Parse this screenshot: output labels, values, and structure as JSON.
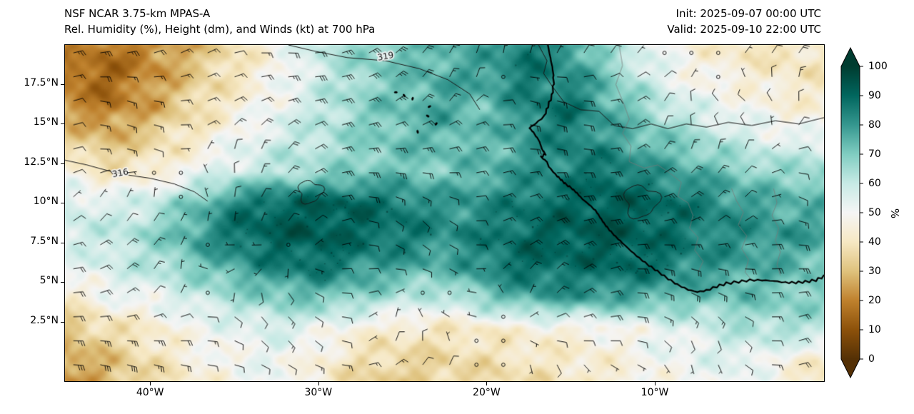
{
  "header": {
    "title_line1": "NSF NCAR 3.75-km MPAS-A",
    "title_line2": "Rel. Humidity (%), Height (dm), and Winds (kt) at 700 hPa",
    "init_label": "Init: 2025-09-07 00:00 UTC",
    "valid_label": "Valid: 2025-09-10 22:00 UTC"
  },
  "chart_data": {
    "type": "heatmap",
    "title": "Rel. Humidity (%), Height (dm), and Winds (kt) at 700 hPa",
    "variable": "relative humidity (%) at 700 hPa",
    "overlays": [
      "geopotential height contours (dm)",
      "wind barbs (kt)",
      "coastlines",
      "country borders"
    ],
    "geo": {
      "lon_min": -45.1,
      "lon_max": 0.1,
      "lat_min": -1.3,
      "lat_max": 20.0
    },
    "x_axis": {
      "tick_labels": [
        "40°W",
        "30°W",
        "20°W",
        "10°W"
      ],
      "tick_lons": [
        -40,
        -30,
        -20,
        -10
      ]
    },
    "y_axis": {
      "tick_labels": [
        "17.5°N",
        "15°N",
        "12.5°N",
        "10°N",
        "7.5°N",
        "5°N",
        "2.5°N"
      ],
      "tick_lats": [
        17.5,
        15,
        12.5,
        10,
        7.5,
        5,
        2.5
      ]
    },
    "colorbar": {
      "label": "%",
      "ticks": [
        0,
        10,
        20,
        30,
        40,
        50,
        60,
        70,
        80,
        90,
        100
      ],
      "colors_low_to_high": [
        "#543005",
        "#8c510a",
        "#bf812d",
        "#dfc27d",
        "#f6e8c3",
        "#f5f5f5",
        "#c7eae5",
        "#80cdc1",
        "#35978f",
        "#01665e",
        "#003c30"
      ]
    },
    "rh_grid": {
      "lons": [
        -45,
        -42.5,
        -40,
        -37.5,
        -35,
        -32.5,
        -30,
        -27.5,
        -25,
        -22.5,
        -20,
        -17.5,
        -15,
        -12.5,
        -10,
        -7.5,
        -5,
        -2.5,
        0
      ],
      "lats": [
        20,
        18,
        16,
        14,
        12,
        10,
        8,
        6,
        4,
        2,
        0,
        -2
      ],
      "values": [
        [
          22,
          18,
          20,
          28,
          38,
          48,
          60,
          68,
          72,
          74,
          76,
          88,
          80,
          62,
          52,
          45,
          40,
          38,
          42
        ],
        [
          16,
          14,
          22,
          32,
          40,
          48,
          58,
          66,
          72,
          76,
          80,
          86,
          82,
          70,
          55,
          48,
          45,
          42,
          40
        ],
        [
          24,
          18,
          26,
          36,
          44,
          52,
          60,
          68,
          73,
          78,
          72,
          84,
          88,
          76,
          65,
          55,
          50,
          46,
          44
        ],
        [
          34,
          28,
          35,
          42,
          50,
          58,
          62,
          68,
          72,
          75,
          72,
          80,
          85,
          78,
          72,
          66,
          58,
          54,
          52
        ],
        [
          46,
          40,
          42,
          50,
          58,
          62,
          65,
          70,
          72,
          70,
          75,
          80,
          85,
          88,
          80,
          76,
          70,
          66,
          68
        ],
        [
          58,
          54,
          60,
          70,
          84,
          90,
          92,
          90,
          85,
          80,
          82,
          86,
          90,
          92,
          90,
          86,
          80,
          76,
          74
        ],
        [
          58,
          60,
          66,
          78,
          88,
          92,
          93,
          90,
          87,
          82,
          85,
          90,
          92,
          93,
          90,
          85,
          82,
          80,
          78
        ],
        [
          52,
          57,
          62,
          70,
          78,
          85,
          88,
          82,
          78,
          75,
          84,
          90,
          88,
          90,
          88,
          82,
          78,
          75,
          72
        ],
        [
          42,
          50,
          52,
          58,
          65,
          70,
          72,
          68,
          62,
          60,
          70,
          78,
          80,
          78,
          75,
          72,
          72,
          70,
          68
        ],
        [
          30,
          38,
          42,
          50,
          52,
          56,
          52,
          45,
          42,
          40,
          42,
          45,
          45,
          48,
          52,
          55,
          62,
          64,
          62
        ],
        [
          25,
          30,
          38,
          45,
          50,
          52,
          45,
          38,
          35,
          36,
          38,
          40,
          42,
          45,
          50,
          52,
          55,
          48,
          42
        ],
        [
          20,
          26,
          34,
          42,
          48,
          50,
          42,
          34,
          31,
          33,
          35,
          37,
          39,
          41,
          47,
          50,
          52,
          44,
          38
        ]
      ]
    },
    "contours": [
      {
        "label": "319",
        "label_at": [
          -26.0,
          19.25
        ],
        "points": [
          [
            -31.8,
            20.0
          ],
          [
            -30.2,
            19.6
          ],
          [
            -28.3,
            19.2
          ],
          [
            -26.0,
            19.0
          ],
          [
            -24.0,
            18.5
          ],
          [
            -22.3,
            17.8
          ],
          [
            -21.0,
            16.9
          ],
          [
            -20.4,
            15.9
          ]
        ]
      },
      {
        "label": "316",
        "label_at": [
          -41.8,
          11.85
        ],
        "points": [
          [
            -45.1,
            12.7
          ],
          [
            -43.8,
            12.4
          ],
          [
            -42.6,
            12.05
          ],
          [
            -41.3,
            11.75
          ],
          [
            -40.0,
            11.55
          ],
          [
            -38.6,
            11.2
          ],
          [
            -37.4,
            10.7
          ],
          [
            -36.6,
            10.1
          ]
        ]
      },
      {
        "label": "",
        "points": [
          [
            -16.9,
            20.0
          ],
          [
            -16.4,
            19.0
          ],
          [
            -16.6,
            18.2
          ],
          [
            -16.1,
            17.4
          ],
          [
            -15.4,
            16.4
          ],
          [
            -14.4,
            15.9
          ],
          [
            -13.3,
            15.8
          ],
          [
            -12.4,
            14.9
          ],
          [
            -11.3,
            14.7
          ],
          [
            -10.2,
            15.0
          ],
          [
            -9.2,
            14.7
          ],
          [
            -8.1,
            15.0
          ],
          [
            -6.9,
            14.8
          ],
          [
            -5.6,
            15.1
          ],
          [
            -4.2,
            14.9
          ],
          [
            -2.8,
            15.2
          ],
          [
            -1.4,
            15.0
          ],
          [
            0.1,
            15.4
          ]
        ]
      },
      {
        "label": "",
        "closed": true,
        "center": [
          -30.5,
          10.7
        ],
        "r": 0.7
      },
      {
        "label": "",
        "closed": true,
        "center": [
          -10.8,
          10.1
        ],
        "r": 1.0
      }
    ],
    "borders": [
      [
        [
          -12.1,
          20.0
        ],
        [
          -11.9,
          18.7
        ],
        [
          -12.3,
          17.5
        ],
        [
          -11.8,
          16.2
        ],
        [
          -11.5,
          15.3
        ],
        [
          -11.9,
          14.4
        ],
        [
          -11.4,
          13.6
        ],
        [
          -11.5,
          12.6
        ]
      ],
      [
        [
          -11.5,
          12.6
        ],
        [
          -10.6,
          12.2
        ],
        [
          -9.8,
          12.4
        ],
        [
          -9.1,
          11.9
        ],
        [
          -8.4,
          11.3
        ],
        [
          -8.6,
          10.4
        ],
        [
          -8.0,
          10.0
        ],
        [
          -7.7,
          9.2
        ],
        [
          -7.9,
          8.4
        ],
        [
          -7.4,
          7.8
        ],
        [
          -7.6,
          7.0
        ],
        [
          -7.1,
          6.3
        ],
        [
          -7.4,
          5.6
        ]
      ],
      [
        [
          -5.4,
          10.9
        ],
        [
          -5.1,
          10.1
        ],
        [
          -4.7,
          9.4
        ],
        [
          -5.0,
          8.6
        ],
        [
          -4.5,
          7.9
        ],
        [
          -4.8,
          7.1
        ],
        [
          -4.4,
          6.4
        ],
        [
          -4.6,
          5.6
        ],
        [
          -4.2,
          5.1
        ]
      ],
      [
        [
          -2.9,
          10.9
        ],
        [
          -2.7,
          10.0
        ],
        [
          -3.0,
          9.2
        ],
        [
          -2.6,
          8.4
        ],
        [
          -2.8,
          7.6
        ],
        [
          -2.5,
          6.9
        ],
        [
          -2.7,
          6.1
        ],
        [
          -2.5,
          5.4
        ]
      ]
    ],
    "coastline_lonlat": [
      [
        -16.35,
        20.0
      ],
      [
        -16.2,
        19.2
      ],
      [
        -16.05,
        18.4
      ],
      [
        -16.0,
        17.6
      ],
      [
        -16.1,
        16.8
      ],
      [
        -16.35,
        16.1
      ],
      [
        -16.55,
        15.5
      ],
      [
        -17.1,
        15.0
      ],
      [
        -17.45,
        14.75
      ],
      [
        -17.2,
        14.45
      ],
      [
        -16.85,
        13.9
      ],
      [
        -16.7,
        13.4
      ],
      [
        -16.5,
        13.1
      ],
      [
        -16.75,
        12.9
      ],
      [
        -16.4,
        12.6
      ],
      [
        -16.3,
        12.3
      ],
      [
        -15.9,
        11.8
      ],
      [
        -15.6,
        11.5
      ],
      [
        -15.3,
        11.2
      ],
      [
        -14.9,
        10.9
      ],
      [
        -14.6,
        10.6
      ],
      [
        -14.3,
        10.25
      ],
      [
        -13.9,
        9.9
      ],
      [
        -13.5,
        9.5
      ],
      [
        -13.25,
        9.1
      ],
      [
        -13.0,
        8.7
      ],
      [
        -12.7,
        8.3
      ],
      [
        -12.3,
        7.85
      ],
      [
        -11.9,
        7.45
      ],
      [
        -11.4,
        6.95
      ],
      [
        -10.9,
        6.5
      ],
      [
        -10.35,
        6.05
      ],
      [
        -9.8,
        5.65
      ],
      [
        -9.2,
        5.2
      ],
      [
        -8.6,
        4.8
      ],
      [
        -8.0,
        4.5
      ],
      [
        -7.45,
        4.35
      ],
      [
        -6.9,
        4.45
      ],
      [
        -6.3,
        4.7
      ],
      [
        -5.7,
        4.9
      ],
      [
        -5.0,
        5.0
      ],
      [
        -4.3,
        5.1
      ],
      [
        -3.6,
        5.1
      ],
      [
        -2.9,
        5.05
      ],
      [
        -2.2,
        4.95
      ],
      [
        -1.6,
        4.95
      ],
      [
        -1.0,
        5.0
      ],
      [
        -0.4,
        5.1
      ],
      [
        0.1,
        5.35
      ]
    ],
    "islands_lonlat": [
      [
        -25.4,
        17.0
      ],
      [
        -24.9,
        16.8
      ],
      [
        -24.4,
        16.6
      ],
      [
        -23.4,
        16.1
      ],
      [
        -23.5,
        15.5
      ],
      [
        -24.1,
        14.5
      ],
      [
        -23.0,
        15.0
      ]
    ],
    "wind": {
      "style": "barbs",
      "units": "kt",
      "description": "easterly to northeasterly flow 5-25 kt; occasional calm circles"
    }
  }
}
